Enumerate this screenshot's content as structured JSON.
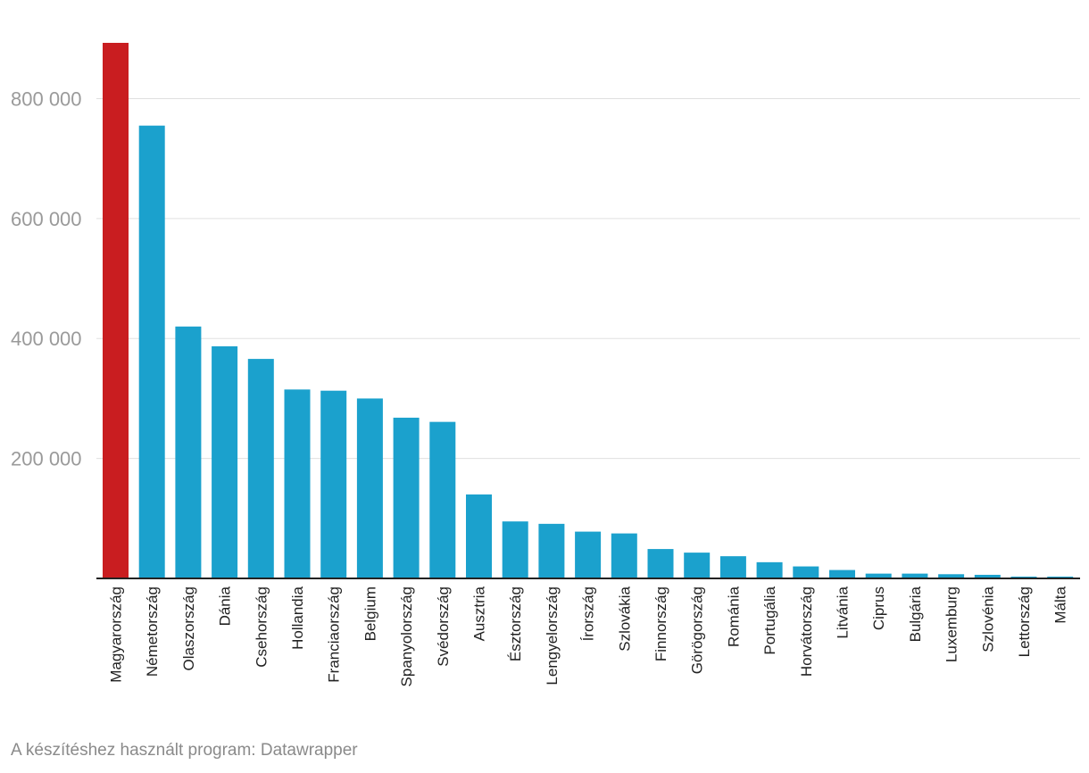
{
  "chart_data": {
    "type": "bar",
    "categories": [
      "Magyarország",
      "Németország",
      "Olaszország",
      "Dánia",
      "Csehország",
      "Hollandia",
      "Franciaország",
      "Belgium",
      "Spanyolország",
      "Svédország",
      "Ausztria",
      "Észtország",
      "Lengyelország",
      "Írország",
      "Szlovákia",
      "Finnország",
      "Görögország",
      "Románia",
      "Portugália",
      "Horvátország",
      "Litvánia",
      "Ciprus",
      "Bulgária",
      "Luxemburg",
      "Szlovénia",
      "Lettország",
      "Málta"
    ],
    "values": [
      893000,
      755000,
      420000,
      387000,
      366000,
      315000,
      313000,
      300000,
      268000,
      261000,
      140000,
      95000,
      91000,
      78000,
      75000,
      49000,
      43000,
      37000,
      27000,
      20000,
      14000,
      8000,
      8000,
      7000,
      6000,
      3000,
      3000
    ],
    "highlight_index": 0,
    "colors": {
      "bar": "#1ba1cd",
      "highlight": "#c91d20",
      "grid": "#e0e0e0",
      "axis": "#222222"
    },
    "ylim": [
      0,
      893000
    ],
    "yticks": [
      200000,
      400000,
      600000,
      800000
    ],
    "ytick_labels": [
      "200 000",
      "400 000",
      "600 000",
      "800 000"
    ],
    "grid": true
  },
  "footer": {
    "text": "A készítéshez használt program: Datawrapper"
  }
}
